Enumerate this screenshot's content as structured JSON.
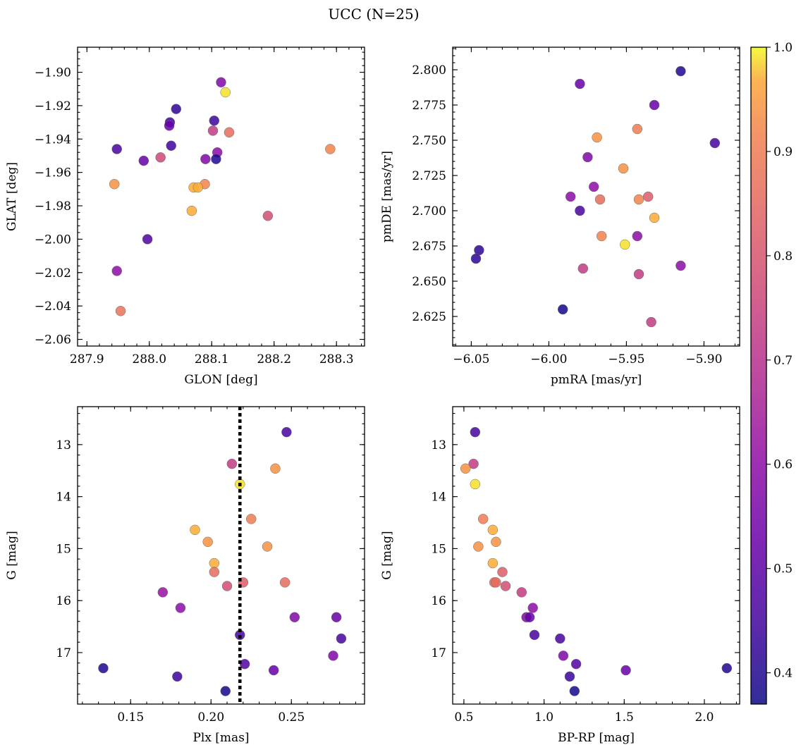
{
  "title": "UCC (N=25)",
  "colormap": {
    "name": "plasma",
    "min": 0.37,
    "max": 1.0,
    "ticks": [
      0.4,
      0.5,
      0.6,
      0.7,
      0.8,
      0.9,
      1.0
    ],
    "tick_labels": [
      "0.4",
      "0.5",
      "0.6",
      "0.7",
      "0.8",
      "0.9",
      "1.0"
    ]
  },
  "chart_data": [
    {
      "type": "scatter",
      "id": "glon-glat",
      "xlabel": "GLON [deg]",
      "ylabel": "GLAT [deg]",
      "xlim": [
        287.885,
        288.345
      ],
      "ylim": [
        -2.064,
        -1.885
      ],
      "y_inverted": false,
      "xticks": [
        287.9,
        288.0,
        288.1,
        288.2,
        288.3
      ],
      "xtick_labels": [
        "287.9",
        "288.0",
        "288.1",
        "288.2",
        "288.3"
      ],
      "yticks": [
        -2.06,
        -2.04,
        -2.02,
        -2.0,
        -1.98,
        -1.96,
        -1.94,
        -1.92,
        -1.9
      ],
      "ytick_labels": [
        "−2.06",
        "−2.04",
        "−2.02",
        "−2.00",
        "−1.98",
        "−1.96",
        "−1.94",
        "−1.92",
        "−1.90"
      ],
      "points": [
        {
          "x": 288.115,
          "y": -1.906,
          "c": 0.57
        },
        {
          "x": 288.122,
          "y": -1.912,
          "c": 0.99
        },
        {
          "x": 288.043,
          "y": -1.922,
          "c": 0.42
        },
        {
          "x": 288.033,
          "y": -1.93,
          "c": 0.44
        },
        {
          "x": 288.104,
          "y": -1.929,
          "c": 0.44
        },
        {
          "x": 288.032,
          "y": -1.932,
          "c": 0.52
        },
        {
          "x": 288.102,
          "y": -1.935,
          "c": 0.73
        },
        {
          "x": 288.128,
          "y": -1.936,
          "c": 0.86
        },
        {
          "x": 288.035,
          "y": -1.944,
          "c": 0.44
        },
        {
          "x": 287.948,
          "y": -1.946,
          "c": 0.46
        },
        {
          "x": 288.29,
          "y": -1.946,
          "c": 0.92
        },
        {
          "x": 288.109,
          "y": -1.948,
          "c": 0.6
        },
        {
          "x": 288.018,
          "y": -1.951,
          "c": 0.76
        },
        {
          "x": 288.09,
          "y": -1.952,
          "c": 0.57
        },
        {
          "x": 288.107,
          "y": -1.952,
          "c": 0.4
        },
        {
          "x": 287.991,
          "y": -1.953,
          "c": 0.52
        },
        {
          "x": 287.944,
          "y": -1.967,
          "c": 0.94
        },
        {
          "x": 288.089,
          "y": -1.967,
          "c": 0.92
        },
        {
          "x": 288.071,
          "y": -1.969,
          "c": 0.97
        },
        {
          "x": 288.078,
          "y": -1.969,
          "c": 0.97
        },
        {
          "x": 288.068,
          "y": -1.983,
          "c": 0.97
        },
        {
          "x": 288.19,
          "y": -1.986,
          "c": 0.78
        },
        {
          "x": 287.997,
          "y": -2.0,
          "c": 0.48
        },
        {
          "x": 287.948,
          "y": -2.019,
          "c": 0.6
        },
        {
          "x": 287.954,
          "y": -2.043,
          "c": 0.88
        }
      ]
    },
    {
      "type": "scatter",
      "id": "pmra-pmde",
      "xlabel": "pmRA [mas/yr]",
      "ylabel": "pmDE [mas/yr]",
      "xlim": [
        -6.062,
        -5.877
      ],
      "ylim": [
        2.604,
        2.816
      ],
      "y_inverted": false,
      "xticks": [
        -6.05,
        -6.0,
        -5.95,
        -5.9
      ],
      "xtick_labels": [
        "−6.05",
        "−6.00",
        "−5.95",
        "−5.90"
      ],
      "yticks": [
        2.625,
        2.65,
        2.675,
        2.7,
        2.725,
        2.75,
        2.775,
        2.8
      ],
      "ytick_labels": [
        "2.625",
        "2.650",
        "2.675",
        "2.700",
        "2.725",
        "2.750",
        "2.775",
        "2.800"
      ],
      "points": [
        {
          "x": -5.915,
          "y": 2.799,
          "c": 0.4
        },
        {
          "x": -5.98,
          "y": 2.79,
          "c": 0.52
        },
        {
          "x": -5.932,
          "y": 2.775,
          "c": 0.52
        },
        {
          "x": -5.969,
          "y": 2.752,
          "c": 0.94
        },
        {
          "x": -5.943,
          "y": 2.758,
          "c": 0.9
        },
        {
          "x": -5.893,
          "y": 2.748,
          "c": 0.46
        },
        {
          "x": -5.975,
          "y": 2.738,
          "c": 0.57
        },
        {
          "x": -5.952,
          "y": 2.73,
          "c": 0.94
        },
        {
          "x": -5.971,
          "y": 2.717,
          "c": 0.6
        },
        {
          "x": -5.986,
          "y": 2.71,
          "c": 0.6
        },
        {
          "x": -5.936,
          "y": 2.71,
          "c": 0.82
        },
        {
          "x": -5.967,
          "y": 2.708,
          "c": 0.86
        },
        {
          "x": -5.942,
          "y": 2.708,
          "c": 0.92
        },
        {
          "x": -5.98,
          "y": 2.7,
          "c": 0.46
        },
        {
          "x": -5.932,
          "y": 2.695,
          "c": 0.97
        },
        {
          "x": -5.943,
          "y": 2.682,
          "c": 0.6
        },
        {
          "x": -5.966,
          "y": 2.682,
          "c": 0.92
        },
        {
          "x": -5.951,
          "y": 2.676,
          "c": 0.99
        },
        {
          "x": -6.045,
          "y": 2.672,
          "c": 0.42
        },
        {
          "x": -6.047,
          "y": 2.666,
          "c": 0.42
        },
        {
          "x": -5.915,
          "y": 2.661,
          "c": 0.6
        },
        {
          "x": -5.978,
          "y": 2.659,
          "c": 0.73
        },
        {
          "x": -5.942,
          "y": 2.655,
          "c": 0.73
        },
        {
          "x": -5.991,
          "y": 2.63,
          "c": 0.38
        },
        {
          "x": -5.934,
          "y": 2.621,
          "c": 0.73
        }
      ]
    },
    {
      "type": "scatter",
      "id": "plx-g",
      "xlabel": "Plx [mas]",
      "ylabel": "G [mag]",
      "xlim": [
        0.117,
        0.2955
      ],
      "ylim": [
        12.27,
        17.99
      ],
      "y_inverted": true,
      "vline": 0.218,
      "xticks": [
        0.15,
        0.2,
        0.25
      ],
      "xtick_labels": [
        "0.15",
        "0.20",
        "0.25"
      ],
      "yticks": [
        13,
        14,
        15,
        16,
        17
      ],
      "ytick_labels": [
        "13",
        "14",
        "15",
        "16",
        "17"
      ],
      "points": [
        {
          "x": 0.247,
          "y": 12.76,
          "c": 0.46
        },
        {
          "x": 0.213,
          "y": 13.37,
          "c": 0.73
        },
        {
          "x": 0.24,
          "y": 13.46,
          "c": 0.94
        },
        {
          "x": 0.218,
          "y": 13.76,
          "c": 0.99
        },
        {
          "x": 0.225,
          "y": 14.43,
          "c": 0.9
        },
        {
          "x": 0.19,
          "y": 14.64,
          "c": 0.97
        },
        {
          "x": 0.198,
          "y": 14.87,
          "c": 0.94
        },
        {
          "x": 0.235,
          "y": 14.96,
          "c": 0.94
        },
        {
          "x": 0.202,
          "y": 15.28,
          "c": 0.97
        },
        {
          "x": 0.202,
          "y": 15.45,
          "c": 0.86
        },
        {
          "x": 0.22,
          "y": 15.65,
          "c": 0.82
        },
        {
          "x": 0.246,
          "y": 15.65,
          "c": 0.86
        },
        {
          "x": 0.21,
          "y": 15.72,
          "c": 0.78
        },
        {
          "x": 0.17,
          "y": 15.84,
          "c": 0.62
        },
        {
          "x": 0.181,
          "y": 16.14,
          "c": 0.6
        },
        {
          "x": 0.252,
          "y": 16.32,
          "c": 0.57
        },
        {
          "x": 0.278,
          "y": 16.32,
          "c": 0.52
        },
        {
          "x": 0.218,
          "y": 16.66,
          "c": 0.46
        },
        {
          "x": 0.281,
          "y": 16.73,
          "c": 0.46
        },
        {
          "x": 0.276,
          "y": 17.06,
          "c": 0.57
        },
        {
          "x": 0.221,
          "y": 17.22,
          "c": 0.48
        },
        {
          "x": 0.133,
          "y": 17.3,
          "c": 0.4
        },
        {
          "x": 0.239,
          "y": 17.34,
          "c": 0.52
        },
        {
          "x": 0.179,
          "y": 17.46,
          "c": 0.44
        },
        {
          "x": 0.209,
          "y": 17.74,
          "c": 0.38
        }
      ]
    },
    {
      "type": "scatter",
      "id": "bprp-g",
      "xlabel": "BP-RP [mag]",
      "ylabel": "G [mag]",
      "xlim": [
        0.43,
        2.22
      ],
      "ylim": [
        12.27,
        17.99
      ],
      "y_inverted": true,
      "xticks": [
        0.5,
        1.0,
        1.5,
        2.0
      ],
      "xtick_labels": [
        "0.5",
        "1.0",
        "1.5",
        "2.0"
      ],
      "yticks": [
        13,
        14,
        15,
        16,
        17
      ],
      "ytick_labels": [
        "13",
        "14",
        "15",
        "16",
        "17"
      ],
      "points": [
        {
          "x": 0.57,
          "y": 12.76,
          "c": 0.46
        },
        {
          "x": 0.56,
          "y": 13.37,
          "c": 0.73
        },
        {
          "x": 0.51,
          "y": 13.46,
          "c": 0.94
        },
        {
          "x": 0.57,
          "y": 13.76,
          "c": 0.99
        },
        {
          "x": 0.62,
          "y": 14.43,
          "c": 0.9
        },
        {
          "x": 0.68,
          "y": 14.64,
          "c": 0.97
        },
        {
          "x": 0.7,
          "y": 14.87,
          "c": 0.94
        },
        {
          "x": 0.59,
          "y": 14.96,
          "c": 0.94
        },
        {
          "x": 0.68,
          "y": 15.28,
          "c": 0.97
        },
        {
          "x": 0.74,
          "y": 15.45,
          "c": 0.82
        },
        {
          "x": 0.69,
          "y": 15.65,
          "c": 0.86
        },
        {
          "x": 0.7,
          "y": 15.65,
          "c": 0.86
        },
        {
          "x": 0.76,
          "y": 15.72,
          "c": 0.78
        },
        {
          "x": 0.86,
          "y": 15.84,
          "c": 0.73
        },
        {
          "x": 0.93,
          "y": 16.14,
          "c": 0.6
        },
        {
          "x": 0.89,
          "y": 16.32,
          "c": 0.57
        },
        {
          "x": 0.91,
          "y": 16.32,
          "c": 0.52
        },
        {
          "x": 0.94,
          "y": 16.66,
          "c": 0.46
        },
        {
          "x": 1.1,
          "y": 16.73,
          "c": 0.46
        },
        {
          "x": 1.12,
          "y": 17.06,
          "c": 0.57
        },
        {
          "x": 1.2,
          "y": 17.22,
          "c": 0.48
        },
        {
          "x": 2.14,
          "y": 17.3,
          "c": 0.4
        },
        {
          "x": 1.51,
          "y": 17.34,
          "c": 0.52
        },
        {
          "x": 1.16,
          "y": 17.46,
          "c": 0.44
        },
        {
          "x": 1.19,
          "y": 17.74,
          "c": 0.38
        }
      ]
    }
  ]
}
